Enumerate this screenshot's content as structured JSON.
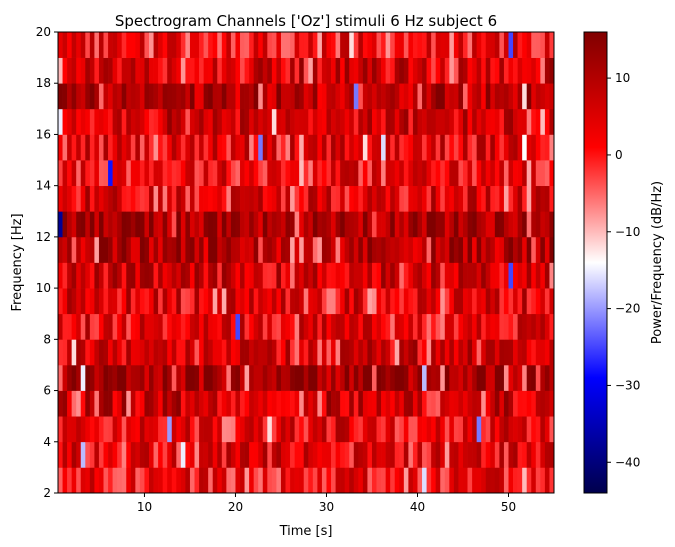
{
  "chart_data": {
    "type": "heatmap",
    "title": "Spectrogram Channels ['Oz'] stimuli 6 Hz subject 6",
    "xlabel": "Time [s]",
    "ylabel": "Frequency [Hz]",
    "xlim": [
      0.5,
      55
    ],
    "ylim": [
      2,
      20
    ],
    "x_ticks": [
      10,
      20,
      30,
      40,
      50
    ],
    "y_ticks": [
      2,
      4,
      6,
      8,
      10,
      12,
      14,
      16,
      18,
      20
    ],
    "colormap": "seismic",
    "colorbar": {
      "label": "Power/Frequency (dB/Hz)",
      "range": [
        -44,
        16
      ],
      "ticks": [
        10,
        0,
        -10,
        -20,
        -30,
        -40
      ]
    },
    "time_bin_seconds": 0.5,
    "freq_bin_hz": 1,
    "row_mean_db": [
      2,
      4,
      4,
      7,
      12,
      6,
      4,
      5,
      6,
      10,
      12,
      5,
      3,
      4,
      6,
      9,
      6,
      2
    ],
    "low_power_cells": [
      {
        "time": 0.7,
        "freq": 12.5,
        "db": -38
      },
      {
        "time": 0.7,
        "freq": 16.5,
        "db": -15
      },
      {
        "time": 0.7,
        "freq": 18.5,
        "db": -10
      },
      {
        "time": 2.3,
        "freq": 7.5,
        "db": -12
      },
      {
        "time": 3.1,
        "freq": 3.5,
        "db": -18
      },
      {
        "time": 3.3,
        "freq": 6.5,
        "db": -15
      },
      {
        "time": 6.1,
        "freq": 14.5,
        "db": -28
      },
      {
        "time": 12.5,
        "freq": 4.5,
        "db": -20
      },
      {
        "time": 14.3,
        "freq": 3.5,
        "db": -15
      },
      {
        "time": 22.9,
        "freq": 15.5,
        "db": -22
      },
      {
        "time": 24.3,
        "freq": 16.5,
        "db": -12
      },
      {
        "time": 27.3,
        "freq": 14.5,
        "db": -10
      },
      {
        "time": 32.6,
        "freq": 19.5,
        "db": -12
      },
      {
        "time": 33.4,
        "freq": 17.5,
        "db": -22
      },
      {
        "time": 34.0,
        "freq": 15.5,
        "db": -12
      },
      {
        "time": 36.3,
        "freq": 15.5,
        "db": -16
      },
      {
        "time": 20.4,
        "freq": 8.5,
        "db": -25
      },
      {
        "time": 23.6,
        "freq": 4.5,
        "db": -12
      },
      {
        "time": 40.6,
        "freq": 6.5,
        "db": -18
      },
      {
        "time": 40.9,
        "freq": 2.5,
        "db": -16
      },
      {
        "time": 46.6,
        "freq": 4.5,
        "db": -22
      },
      {
        "time": 50.1,
        "freq": 10.5,
        "db": -25
      },
      {
        "time": 50.1,
        "freq": 19.5,
        "db": -25
      },
      {
        "time": 51.7,
        "freq": 17.5,
        "db": -12
      },
      {
        "time": 51.9,
        "freq": 15.5,
        "db": -14
      },
      {
        "time": 53.7,
        "freq": 16.5,
        "db": -10
      },
      {
        "time": 51.5,
        "freq": 2.5,
        "db": -10
      }
    ]
  }
}
